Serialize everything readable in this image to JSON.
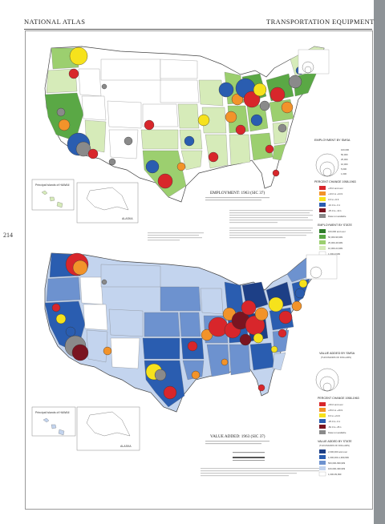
{
  "header": {
    "left": "NATIONAL ATLAS",
    "right": "TRANSPORTATION EQUIPMENT"
  },
  "page_number": "214",
  "map1": {
    "title": "EMPLOYMENT: 1963 (SIC 37)",
    "legend_smsa_title": "EMPLOYMENT BY SMSA",
    "legend_pct_title": "PERCENT CHANGE 1958-1963",
    "legend_state_title": "EMPLOYMENT BY STATE",
    "inset_hawaii": "Principal Islands of HAWAII",
    "inset_alaska": "ALASKA",
    "legend_size_values": [
      "100,000",
      "50,000",
      "25,000",
      "10,000",
      "5,000",
      "1,000"
    ],
    "legend_pct_values": [
      "+25.0 and over",
      "+10.0 to +24.9",
      "0.0 to +9.9",
      "-10.0 to -0.1",
      "-25.0 to -10.1",
      "Data not available"
    ],
    "legend_state_values": [
      "100,000 and over",
      "50,000-99,999",
      "25,000-49,999",
      "10,000-24,999",
      "1,000-9,999"
    ]
  },
  "map2": {
    "title": "VALUE ADDED: 1963 (SIC 37)",
    "legend_smsa_title": "VALUE ADDED BY SMSA",
    "legend_smsa_sub": "(THOUSANDS OF DOLLARS)",
    "legend_pct_title": "PERCENT CHANGE 1958-1963",
    "legend_state_title": "VALUE ADDED BY STATE",
    "legend_state_sub": "(THOUSANDS OF DOLLARS)",
    "inset_hawaii": "Principal Islands of HAWAII",
    "inset_alaska": "ALASKA",
    "legend_pct_values": [
      "+50.0 and over",
      "+25.0 to +49.9",
      "0.0 to +24.9",
      "-25.0 to -0.1",
      "-50.0 to -25.1",
      "Data not available"
    ],
    "legend_state_values": [
      "2,000,000 and over",
      "1,000,000-1,999,999",
      "500,000-999,999",
      "100,000-499,999",
      "1,000-99,999"
    ]
  },
  "colors": {
    "page": "#ffffff",
    "edge": "#8e9397",
    "green_dark": "#5aa845",
    "green_mid": "#9ccf6f",
    "green_light": "#d6ebb9",
    "blue_dark": "#2a5db0",
    "blue_mid": "#6d92cf",
    "blue_light": "#c3d4ee",
    "red": "#d8262b",
    "orange": "#f2932a",
    "yellow": "#f6e21c",
    "gray": "#8a8a8a",
    "darkred": "#7a1420"
  }
}
